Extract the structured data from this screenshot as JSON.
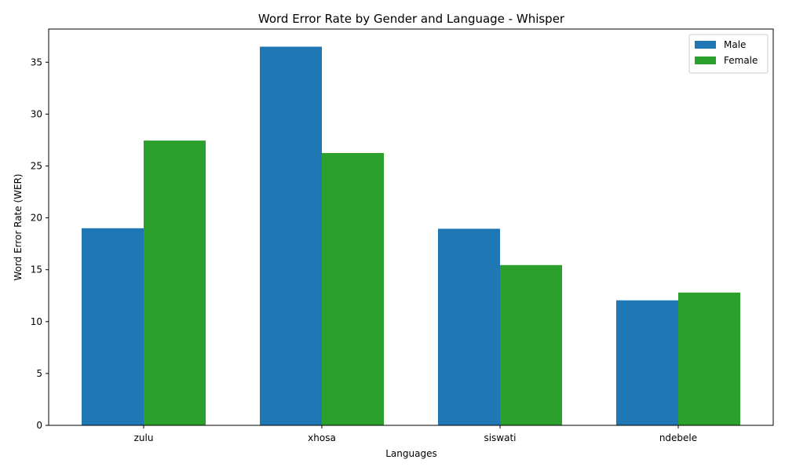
{
  "chart_data": {
    "type": "bar",
    "title": "Word Error Rate by Gender and Language - Whisper",
    "xlabel": "Languages",
    "ylabel": "Word Error Rate (WER)",
    "categories": [
      "zulu",
      "xhosa",
      "siswati",
      "ndebele"
    ],
    "series": [
      {
        "name": "Male",
        "color": "#1f77b4",
        "values": [
          19.0,
          36.5,
          18.95,
          12.05
        ]
      },
      {
        "name": "Female",
        "color": "#2ca02c",
        "values": [
          27.45,
          26.25,
          15.45,
          12.8
        ]
      }
    ],
    "ylim": [
      0,
      38.2
    ],
    "yticks": [
      "0",
      "5",
      "10",
      "15",
      "20",
      "25",
      "30",
      "35"
    ],
    "grid": false,
    "legend_position": "top-right"
  }
}
